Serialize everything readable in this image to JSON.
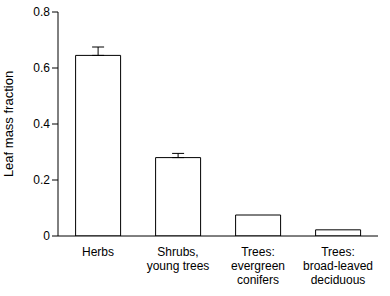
{
  "chart_data": {
    "type": "bar",
    "categories": [
      "Herbs",
      "Shrubs,\nyoung trees",
      "Trees:\nevergreen\nconifers",
      "Trees:\nbroad-leaved\ndeciduous"
    ],
    "values": [
      0.645,
      0.28,
      0.075,
      0.022
    ],
    "errors": [
      0.03,
      0.015,
      null,
      null
    ],
    "color": "#ffffff",
    "y_label": "Leaf mass fraction",
    "ylim": [
      0,
      0.8
    ],
    "yticks": [
      0,
      0.2,
      0.4,
      0.6,
      0.8
    ],
    "grid": false
  }
}
